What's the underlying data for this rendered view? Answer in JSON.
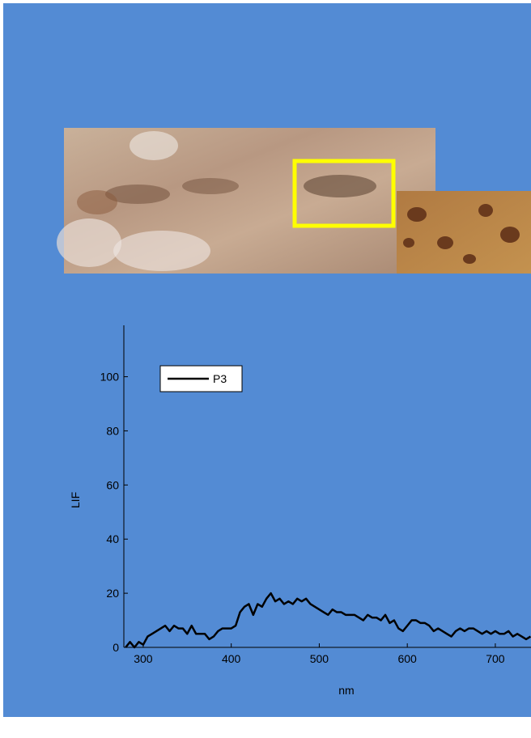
{
  "chart_data": {
    "type": "line",
    "x_label": "nm",
    "y_label": "LIF",
    "x": [
      280,
      285,
      290,
      295,
      300,
      305,
      310,
      315,
      320,
      325,
      330,
      335,
      340,
      345,
      350,
      355,
      360,
      365,
      370,
      375,
      380,
      385,
      390,
      395,
      400,
      405,
      410,
      415,
      420,
      425,
      430,
      435,
      440,
      445,
      450,
      455,
      460,
      465,
      470,
      475,
      480,
      485,
      490,
      495,
      500,
      505,
      510,
      515,
      520,
      525,
      530,
      535,
      540,
      545,
      550,
      555,
      560,
      565,
      570,
      575,
      580,
      585,
      590,
      595,
      600,
      605,
      610,
      615,
      620,
      625,
      630,
      635,
      640,
      645,
      650,
      655,
      660,
      665,
      670,
      675,
      680,
      685,
      690,
      695,
      700,
      705,
      710,
      715,
      720,
      725,
      730,
      735,
      740
    ],
    "series": [
      {
        "name": "P3",
        "color": "#000000",
        "values": [
          0,
          2,
          0,
          2,
          1,
          4,
          5,
          6,
          7,
          8,
          6,
          8,
          7,
          7,
          5,
          8,
          5,
          5,
          5,
          3,
          4,
          6,
          7,
          7,
          7,
          8,
          13,
          15,
          16,
          12,
          16,
          15,
          18,
          20,
          17,
          18,
          16,
          17,
          16,
          18,
          17,
          18,
          16,
          15,
          14,
          13,
          12,
          14,
          13,
          13,
          12,
          12,
          12,
          11,
          10,
          12,
          11,
          11,
          10,
          12,
          9,
          10,
          7,
          6,
          8,
          10,
          10,
          9,
          9,
          8,
          6,
          7,
          6,
          5,
          4,
          6,
          7,
          6,
          7,
          7,
          6,
          5,
          6,
          5,
          6,
          5,
          5,
          6,
          4,
          5,
          4,
          3,
          4
        ]
      }
    ],
    "xlim": [
      278,
      740
    ],
    "ylim": [
      0,
      119
    ],
    "xticks": [
      300,
      400,
      500,
      600,
      700
    ],
    "yticks": [
      0,
      20,
      40,
      60,
      80,
      100
    ],
    "legend": "upper left"
  }
}
